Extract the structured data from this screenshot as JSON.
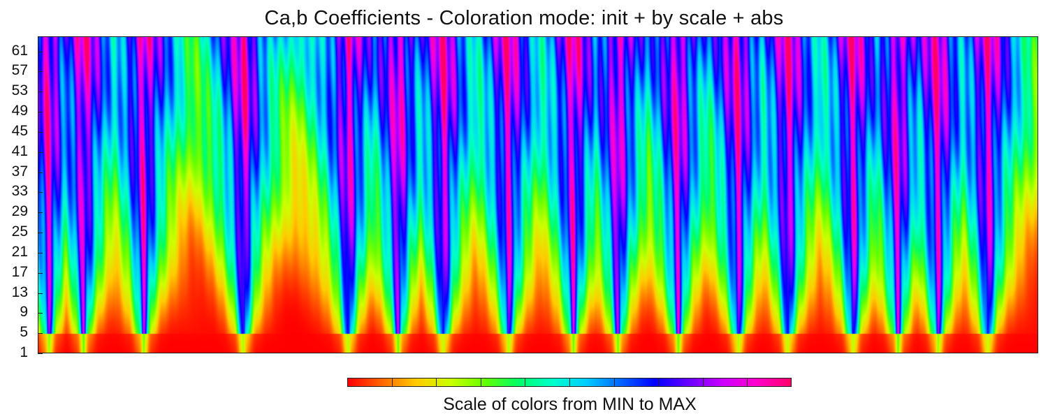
{
  "chart_data": {
    "type": "heatmap",
    "title": "Ca,b Coefficients - Coloration mode: init + by scale + abs",
    "xlabel": "",
    "ylabel": "",
    "y_ticks": [
      "61",
      "57",
      "53",
      "49",
      "45",
      "41",
      "37",
      "33",
      "29",
      "25",
      "21",
      "17",
      "13",
      "9",
      "5",
      "1"
    ],
    "ylim": [
      1,
      64
    ],
    "colorbar": {
      "label": "Scale of colors from MIN to MAX",
      "colors": [
        "#ff0000",
        "#ff6600",
        "#ffcc00",
        "#ccff00",
        "#66ff00",
        "#00ff66",
        "#00ffcc",
        "#00ccff",
        "#0066ff",
        "#0000ff",
        "#6600ff",
        "#cc00ff",
        "#ff00cc",
        "#ff0066"
      ],
      "orientation": "horizontal",
      "position": "bottom-center"
    },
    "minima_positions": [
      0.01,
      0.045,
      0.105,
      0.205,
      0.31,
      0.36,
      0.405,
      0.47,
      0.535,
      0.58,
      0.64,
      0.7,
      0.75,
      0.815,
      0.86,
      0.9,
      0.95
    ]
  }
}
